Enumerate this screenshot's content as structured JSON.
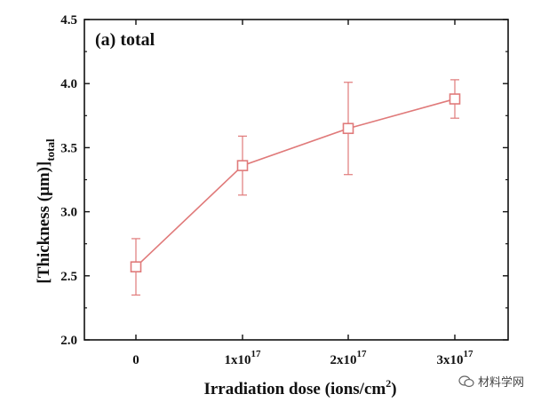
{
  "chart_data": {
    "type": "line",
    "panel_label": "(a) total",
    "xlabel": "Irradiation dose (ions/cm",
    "xlabel_sup": "2",
    "xlabel_close": ")",
    "ylabel": "[Thickness (μm)]",
    "ylabel_sub": "total",
    "categories": [
      {
        "base": "0",
        "sup": ""
      },
      {
        "base": "1x10",
        "sup": "17"
      },
      {
        "base": "2x10",
        "sup": "17"
      },
      {
        "base": "3x10",
        "sup": "17"
      }
    ],
    "values": [
      2.57,
      3.36,
      3.65,
      3.88
    ],
    "error_upper": [
      2.79,
      3.59,
      4.01,
      4.03
    ],
    "error_lower": [
      2.35,
      3.13,
      3.29,
      3.73
    ],
    "ylim": [
      2.0,
      4.5
    ],
    "yticks": [
      "2.0",
      "2.5",
      "3.0",
      "3.5",
      "4.0",
      "4.5"
    ],
    "marker": "open-square",
    "color": "#e07a7a"
  },
  "watermark": {
    "text": "材料学网",
    "icon": "wechat-icon"
  }
}
